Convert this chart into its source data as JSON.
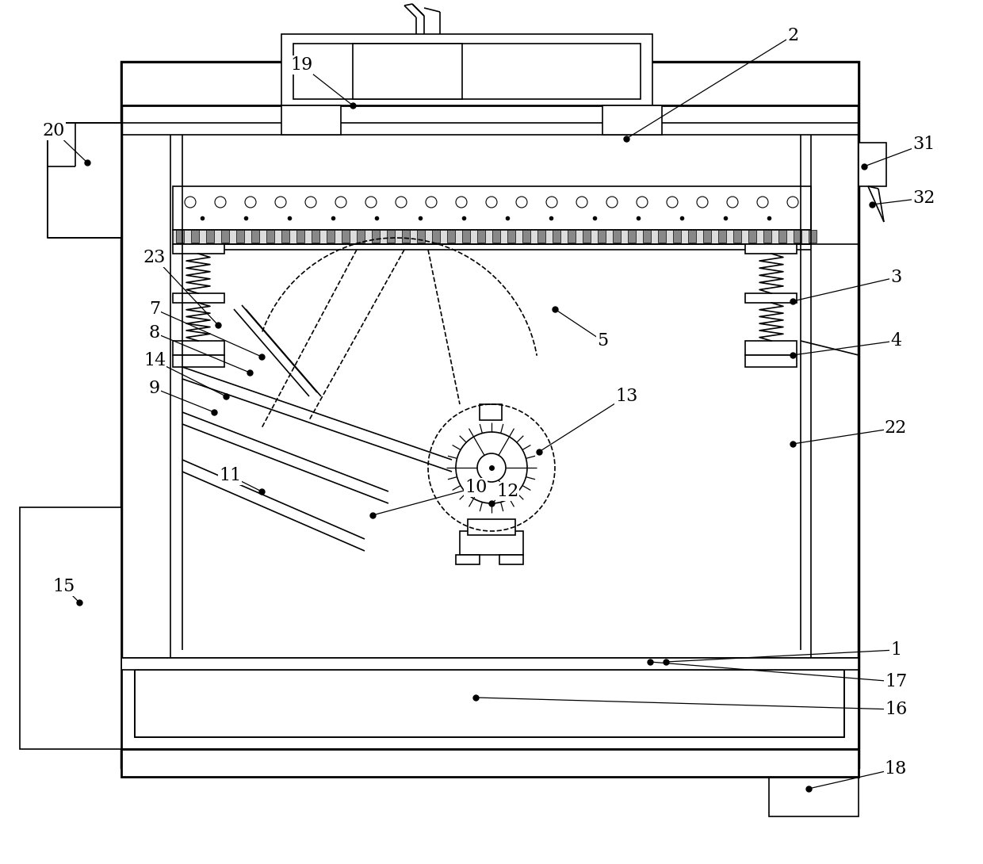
{
  "bg_color": "#ffffff",
  "lc": "#000000",
  "lw": 1.2,
  "tlw": 2.0,
  "fs": 16
}
